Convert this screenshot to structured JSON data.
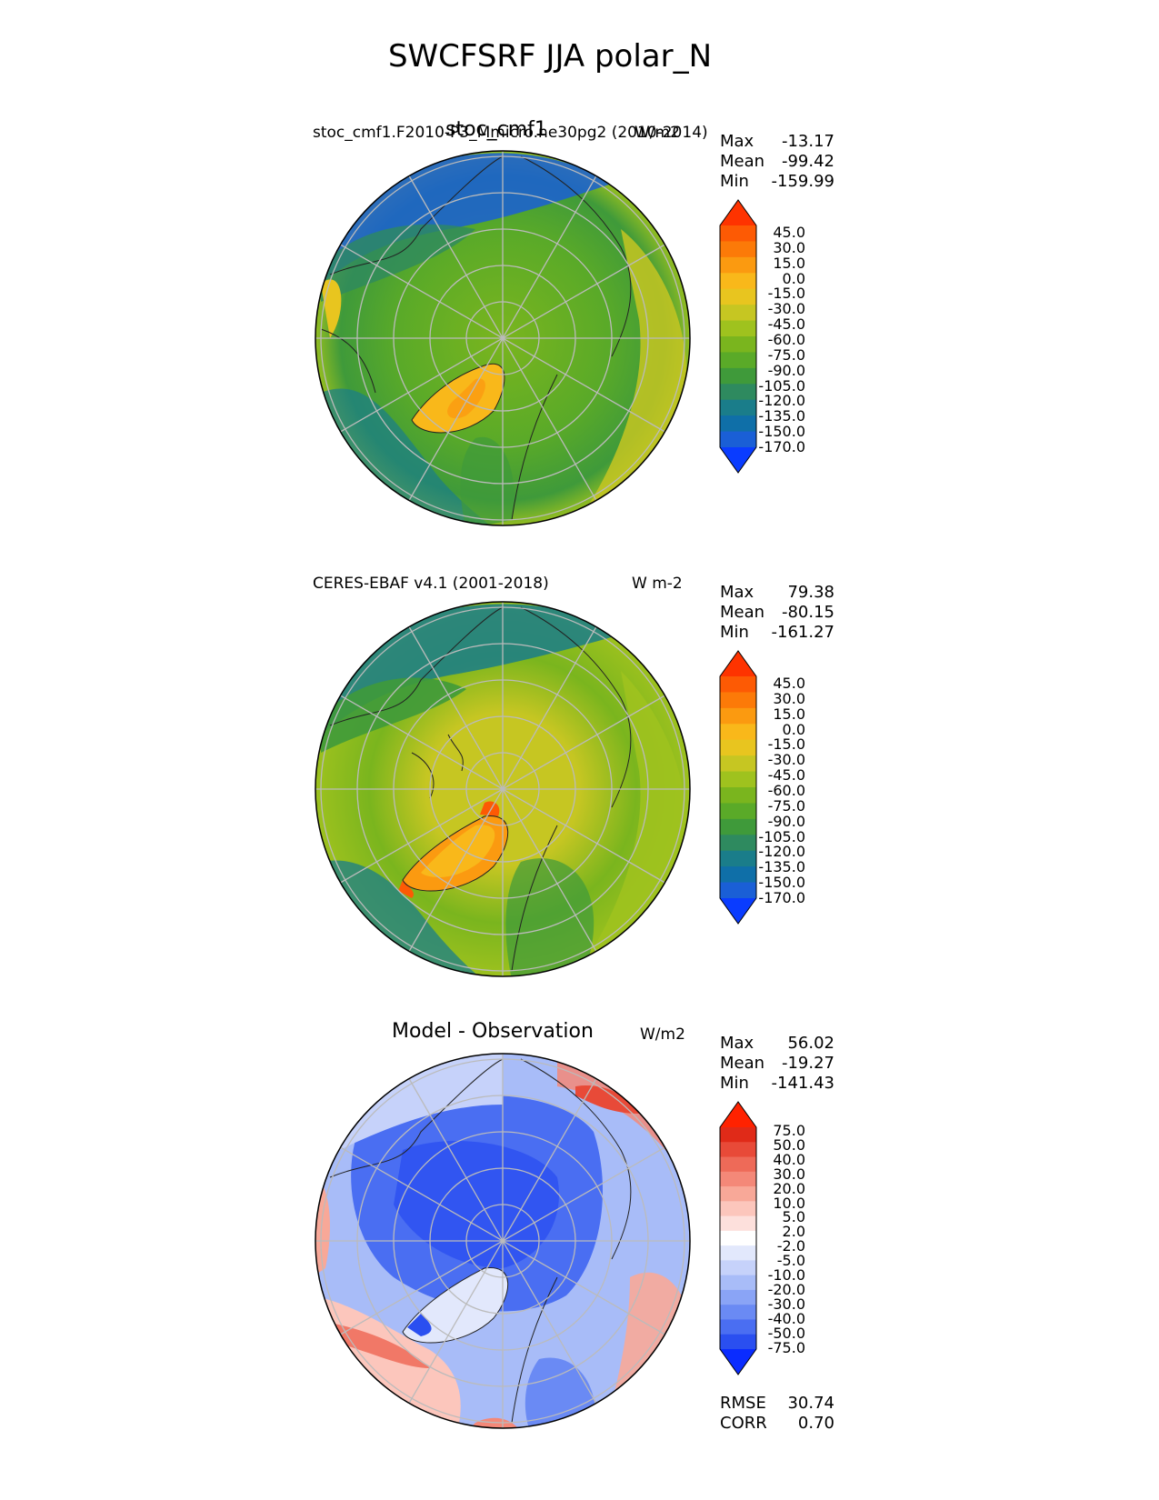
{
  "title": "SWCFSRF JJA polar_N",
  "panels": [
    {
      "left_title": "stoc_cmf1.F2010-P3_Mmicro.ne30pg2 (2010-2014)",
      "center_title": "stoc_cmf1",
      "units": "W/m2",
      "stats": {
        "max_label": "Max",
        "max": "-13.17",
        "mean_label": "Mean",
        "mean": "-99.42",
        "min_label": "Min",
        "min": "-159.99"
      },
      "colorbar_ticks": [
        "45.0",
        "30.0",
        "15.0",
        "0.0",
        "-15.0",
        "-30.0",
        "-45.0",
        "-60.0",
        "-75.0",
        "-90.0",
        "-105.0",
        "-120.0",
        "-135.0",
        "-150.0",
        "-170.0"
      ],
      "colormap": "WhiteBlueGreenYellowRed"
    },
    {
      "left_title": "CERES-EBAF v4.1 (2001-2018)",
      "center_title": "",
      "units": "W m-2",
      "stats": {
        "max_label": "Max",
        "max": "79.38",
        "mean_label": "Mean",
        "mean": "-80.15",
        "min_label": "Min",
        "min": "-161.27"
      },
      "colorbar_ticks": [
        "45.0",
        "30.0",
        "15.0",
        "0.0",
        "-15.0",
        "-30.0",
        "-45.0",
        "-60.0",
        "-75.0",
        "-90.0",
        "-105.0",
        "-120.0",
        "-135.0",
        "-150.0",
        "-170.0"
      ],
      "colormap": "WhiteBlueGreenYellowRed"
    },
    {
      "left_title": "",
      "center_title": "Model - Observation",
      "units": "W/m2",
      "stats": {
        "max_label": "Max",
        "max": "56.02",
        "mean_label": "Mean",
        "mean": "-19.27",
        "min_label": "Min",
        "min": "-141.43"
      },
      "colorbar_ticks": [
        "75.0",
        "50.0",
        "40.0",
        "30.0",
        "20.0",
        "10.0",
        "5.0",
        "2.0",
        "-2.0",
        "-5.0",
        "-10.0",
        "-20.0",
        "-30.0",
        "-40.0",
        "-50.0",
        "-75.0"
      ],
      "colormap": "diverging_bwr",
      "rmse_label": "RMSE",
      "rmse": "30.74",
      "corr_label": "CORR",
      "corr": "0.70"
    }
  ],
  "colors": {
    "seq": [
      "#0a3cff",
      "#1a5fd6",
      "#0f6fa8",
      "#1a7d8a",
      "#2e8a5f",
      "#3f9a3a",
      "#5aaa28",
      "#7ab51e",
      "#9fc21e",
      "#c6c622",
      "#e8c51f",
      "#f9b81a",
      "#fb9a10",
      "#fc7a08",
      "#fd5a04",
      "#fe3300"
    ],
    "div": [
      "#0a2cff",
      "#2a4ff0",
      "#4a6ef2",
      "#6a8af4",
      "#8aa4f6",
      "#a8bcf8",
      "#c6d2fa",
      "#e2e8fc",
      "#ffffff",
      "#fde0dc",
      "#fcc6bc",
      "#f8a898",
      "#f48878",
      "#ee6a58",
      "#e84a38",
      "#e02a18",
      "#ff2200"
    ]
  }
}
